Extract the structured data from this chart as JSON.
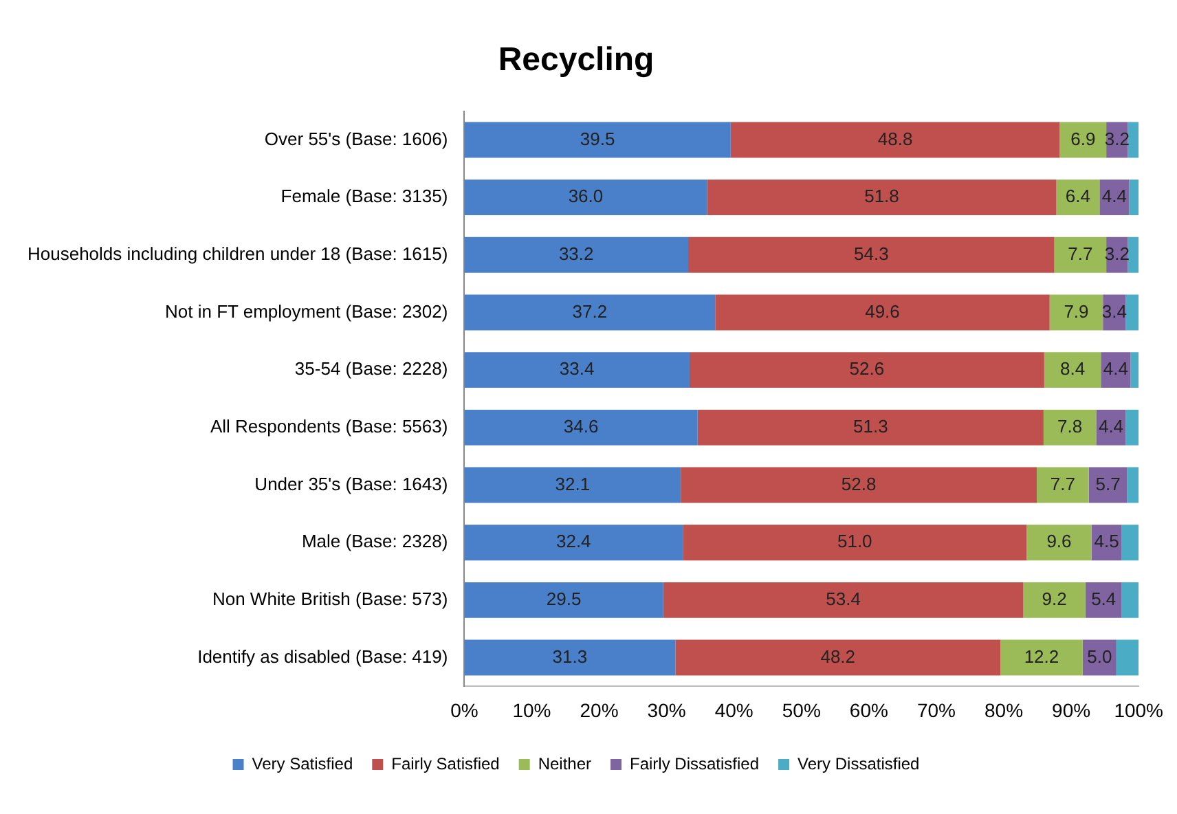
{
  "chart_data": {
    "type": "bar",
    "orientation": "horizontal",
    "stacked": true,
    "title": "Recycling",
    "categories": [
      "Over 55's (Base: 1606)",
      "Female (Base: 3135)",
      "Households including children under 18 (Base: 1615)",
      "Not in FT employment (Base: 2302)",
      "35-54 (Base: 2228)",
      "All Respondents (Base: 5563)",
      "Under 35's (Base: 1643)",
      "Male (Base: 2328)",
      "Non White British (Base: 573)",
      "Identify as disabled (Base: 419)"
    ],
    "series": [
      {
        "name": "Very Satisfied",
        "color": "#4a7fc9",
        "values": [
          39.5,
          36.0,
          33.2,
          37.2,
          33.4,
          34.6,
          32.1,
          32.4,
          29.5,
          31.3
        ],
        "value_labels": [
          "39.5",
          "36.0",
          "33.2",
          "37.2",
          "33.4",
          "34.6",
          "32.1",
          "32.4",
          "29.5",
          "31.3"
        ]
      },
      {
        "name": "Fairly Satisfied",
        "color": "#c0504d",
        "values": [
          48.8,
          51.8,
          54.3,
          49.6,
          52.6,
          51.3,
          52.8,
          51.0,
          53.4,
          48.2
        ],
        "value_labels": [
          "48.8",
          "51.8",
          "54.3",
          "49.6",
          "52.6",
          "51.3",
          "52.8",
          "51.0",
          "53.4",
          "48.2"
        ]
      },
      {
        "name": "Neither",
        "color": "#9bbb59",
        "values": [
          6.9,
          6.4,
          7.7,
          7.9,
          8.4,
          7.8,
          7.7,
          9.6,
          9.2,
          12.2
        ],
        "value_labels": [
          "6.9",
          "6.4",
          "7.7",
          "7.9",
          "8.4",
          "7.8",
          "7.7",
          "9.6",
          "9.2",
          "12.2"
        ]
      },
      {
        "name": "Fairly Dissatisfied",
        "color": "#8064a2",
        "values": [
          3.2,
          4.4,
          3.2,
          3.4,
          4.4,
          4.4,
          5.7,
          4.5,
          5.4,
          5.0
        ],
        "value_labels": [
          "3.2",
          "4.4",
          "3.2",
          "3.4",
          "4.4",
          "4.4",
          "5.7",
          "4.5",
          "5.4",
          "5.0"
        ]
      },
      {
        "name": "Very Dissatisfied",
        "color": "#4bacc6",
        "values": [
          1.6,
          1.4,
          1.6,
          1.9,
          1.2,
          1.9,
          1.7,
          2.5,
          2.5,
          3.3
        ],
        "value_labels": [
          null,
          null,
          null,
          null,
          null,
          null,
          null,
          null,
          null,
          null
        ]
      }
    ],
    "xlim": [
      0,
      100
    ],
    "xticks": [
      {
        "value": 0,
        "label": "0%"
      },
      {
        "value": 10,
        "label": "10%"
      },
      {
        "value": 20,
        "label": "20%"
      },
      {
        "value": 30,
        "label": "30%"
      },
      {
        "value": 40,
        "label": "40%"
      },
      {
        "value": 50,
        "label": "50%"
      },
      {
        "value": 60,
        "label": "60%"
      },
      {
        "value": 70,
        "label": "70%"
      },
      {
        "value": 80,
        "label": "80%"
      },
      {
        "value": 90,
        "label": "90%"
      },
      {
        "value": 100,
        "label": "100%"
      }
    ],
    "grid": false,
    "legend": "bottom"
  }
}
